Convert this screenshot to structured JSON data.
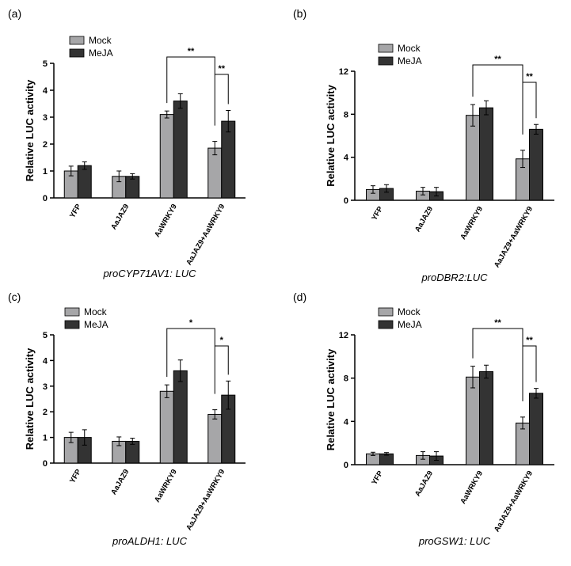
{
  "colors": {
    "mock": "#a6a6a8",
    "meja": "#333333",
    "stroke": "#000000"
  },
  "legend": {
    "mock": "Mock",
    "meja": "MeJA"
  },
  "chart_data": [
    {
      "panel": "(a)",
      "type": "bar",
      "caption": "proCYP71AV1: LUC",
      "ylabel": "Relative LUC activity",
      "ylim": [
        0,
        5
      ],
      "yticks": [
        0,
        1,
        2,
        3,
        4,
        5
      ],
      "categories": [
        "YFP",
        "AaJAZ9",
        "AaWRKY9",
        "AaJAZ9+AaWRKY9"
      ],
      "series": [
        {
          "name": "Mock",
          "values": [
            1.0,
            0.8,
            3.1,
            1.85
          ],
          "errors": [
            0.18,
            0.2,
            0.13,
            0.25
          ]
        },
        {
          "name": "MeJA",
          "values": [
            1.2,
            0.8,
            3.6,
            2.85
          ],
          "errors": [
            0.14,
            0.1,
            0.27,
            0.4
          ]
        }
      ],
      "significance": [
        {
          "label": "**",
          "from_cat": 2,
          "to_cat": 3
        },
        {
          "label": "**",
          "from_cat": 3,
          "to_cat": 3
        }
      ]
    },
    {
      "panel": "(b)",
      "type": "bar",
      "caption": "proDBR2:LUC",
      "ylabel": "Relative LUC activity",
      "ylim": [
        0,
        12
      ],
      "yticks": [
        0,
        4,
        8,
        12
      ],
      "categories": [
        "YFP",
        "AaJAZ9",
        "AaWRKY9",
        "AaJAZ9+AaWRKY9"
      ],
      "series": [
        {
          "name": "Mock",
          "values": [
            1.0,
            0.85,
            7.9,
            3.85
          ],
          "errors": [
            0.35,
            0.35,
            1.0,
            0.8
          ]
        },
        {
          "name": "MeJA",
          "values": [
            1.1,
            0.8,
            8.6,
            6.6
          ],
          "errors": [
            0.35,
            0.4,
            0.65,
            0.45
          ]
        }
      ],
      "significance": [
        {
          "label": "**",
          "from_cat": 2,
          "to_cat": 3
        },
        {
          "label": "**",
          "from_cat": 3,
          "to_cat": 3
        }
      ]
    },
    {
      "panel": "(c)",
      "type": "bar",
      "caption": "proALDH1: LUC",
      "ylabel": "Relative LUC activity",
      "ylim": [
        0,
        5
      ],
      "yticks": [
        0,
        1,
        2,
        3,
        4,
        5
      ],
      "categories": [
        "YFP",
        "AaJAZ9",
        "AaWRKY9",
        "AaJAZ9+AaWRKY9"
      ],
      "series": [
        {
          "name": "Mock",
          "values": [
            1.0,
            0.85,
            2.8,
            1.9
          ],
          "errors": [
            0.2,
            0.17,
            0.25,
            0.18
          ]
        },
        {
          "name": "MeJA",
          "values": [
            1.0,
            0.85,
            3.6,
            2.65
          ],
          "errors": [
            0.3,
            0.12,
            0.42,
            0.55
          ]
        }
      ],
      "significance": [
        {
          "label": "*",
          "from_cat": 2,
          "to_cat": 3
        },
        {
          "label": "*",
          "from_cat": 3,
          "to_cat": 3
        }
      ]
    },
    {
      "panel": "(d)",
      "type": "bar",
      "caption": "proGSW1: LUC",
      "ylabel": "Relative LUC activity",
      "ylim": [
        0,
        12
      ],
      "yticks": [
        0,
        4,
        8,
        12
      ],
      "categories": [
        "YFP",
        "AaJAZ9",
        "AaWRKY9",
        "AaJAZ9+AaWRKY9"
      ],
      "series": [
        {
          "name": "Mock",
          "values": [
            1.0,
            0.85,
            8.1,
            3.85
          ],
          "errors": [
            0.15,
            0.35,
            1.0,
            0.55
          ]
        },
        {
          "name": "MeJA",
          "values": [
            1.0,
            0.8,
            8.6,
            6.6
          ],
          "errors": [
            0.12,
            0.4,
            0.6,
            0.45
          ]
        }
      ],
      "significance": [
        {
          "label": "**",
          "from_cat": 2,
          "to_cat": 3
        },
        {
          "label": "**",
          "from_cat": 3,
          "to_cat": 3
        }
      ]
    }
  ]
}
